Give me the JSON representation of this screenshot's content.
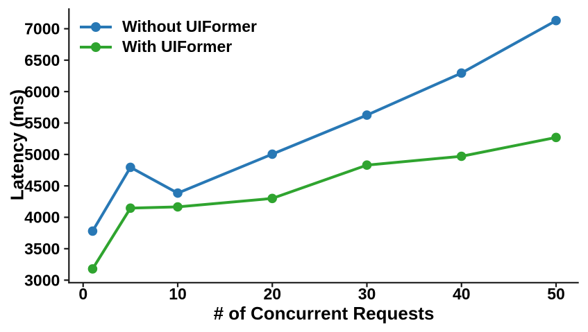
{
  "chart_data": {
    "type": "line",
    "title": "",
    "xlabel": "# of Concurrent Requests",
    "ylabel": "Latency (ms)",
    "x": [
      1,
      5,
      10,
      20,
      30,
      40,
      50
    ],
    "series": [
      {
        "name": "Without UIFormer",
        "color": "#2878b5",
        "values": [
          3780,
          4795,
          4385,
          5005,
          5625,
          6295,
          7130
        ]
      },
      {
        "name": "With UIFormer",
        "color": "#2fa42f",
        "values": [
          3180,
          4145,
          4165,
          4300,
          4830,
          4970,
          5270
        ]
      }
    ],
    "xticks": [
      0,
      10,
      20,
      30,
      40,
      50
    ],
    "yticks": [
      3000,
      3500,
      4000,
      4500,
      5000,
      5500,
      6000,
      6500,
      7000
    ],
    "xlim": [
      -1.5,
      52.4
    ],
    "ylim": [
      2960,
      7325
    ],
    "grid": false,
    "legend_position": "upper-left",
    "marker": "circle",
    "axis_color": "#1a1a1a",
    "text_color": "#000000"
  }
}
